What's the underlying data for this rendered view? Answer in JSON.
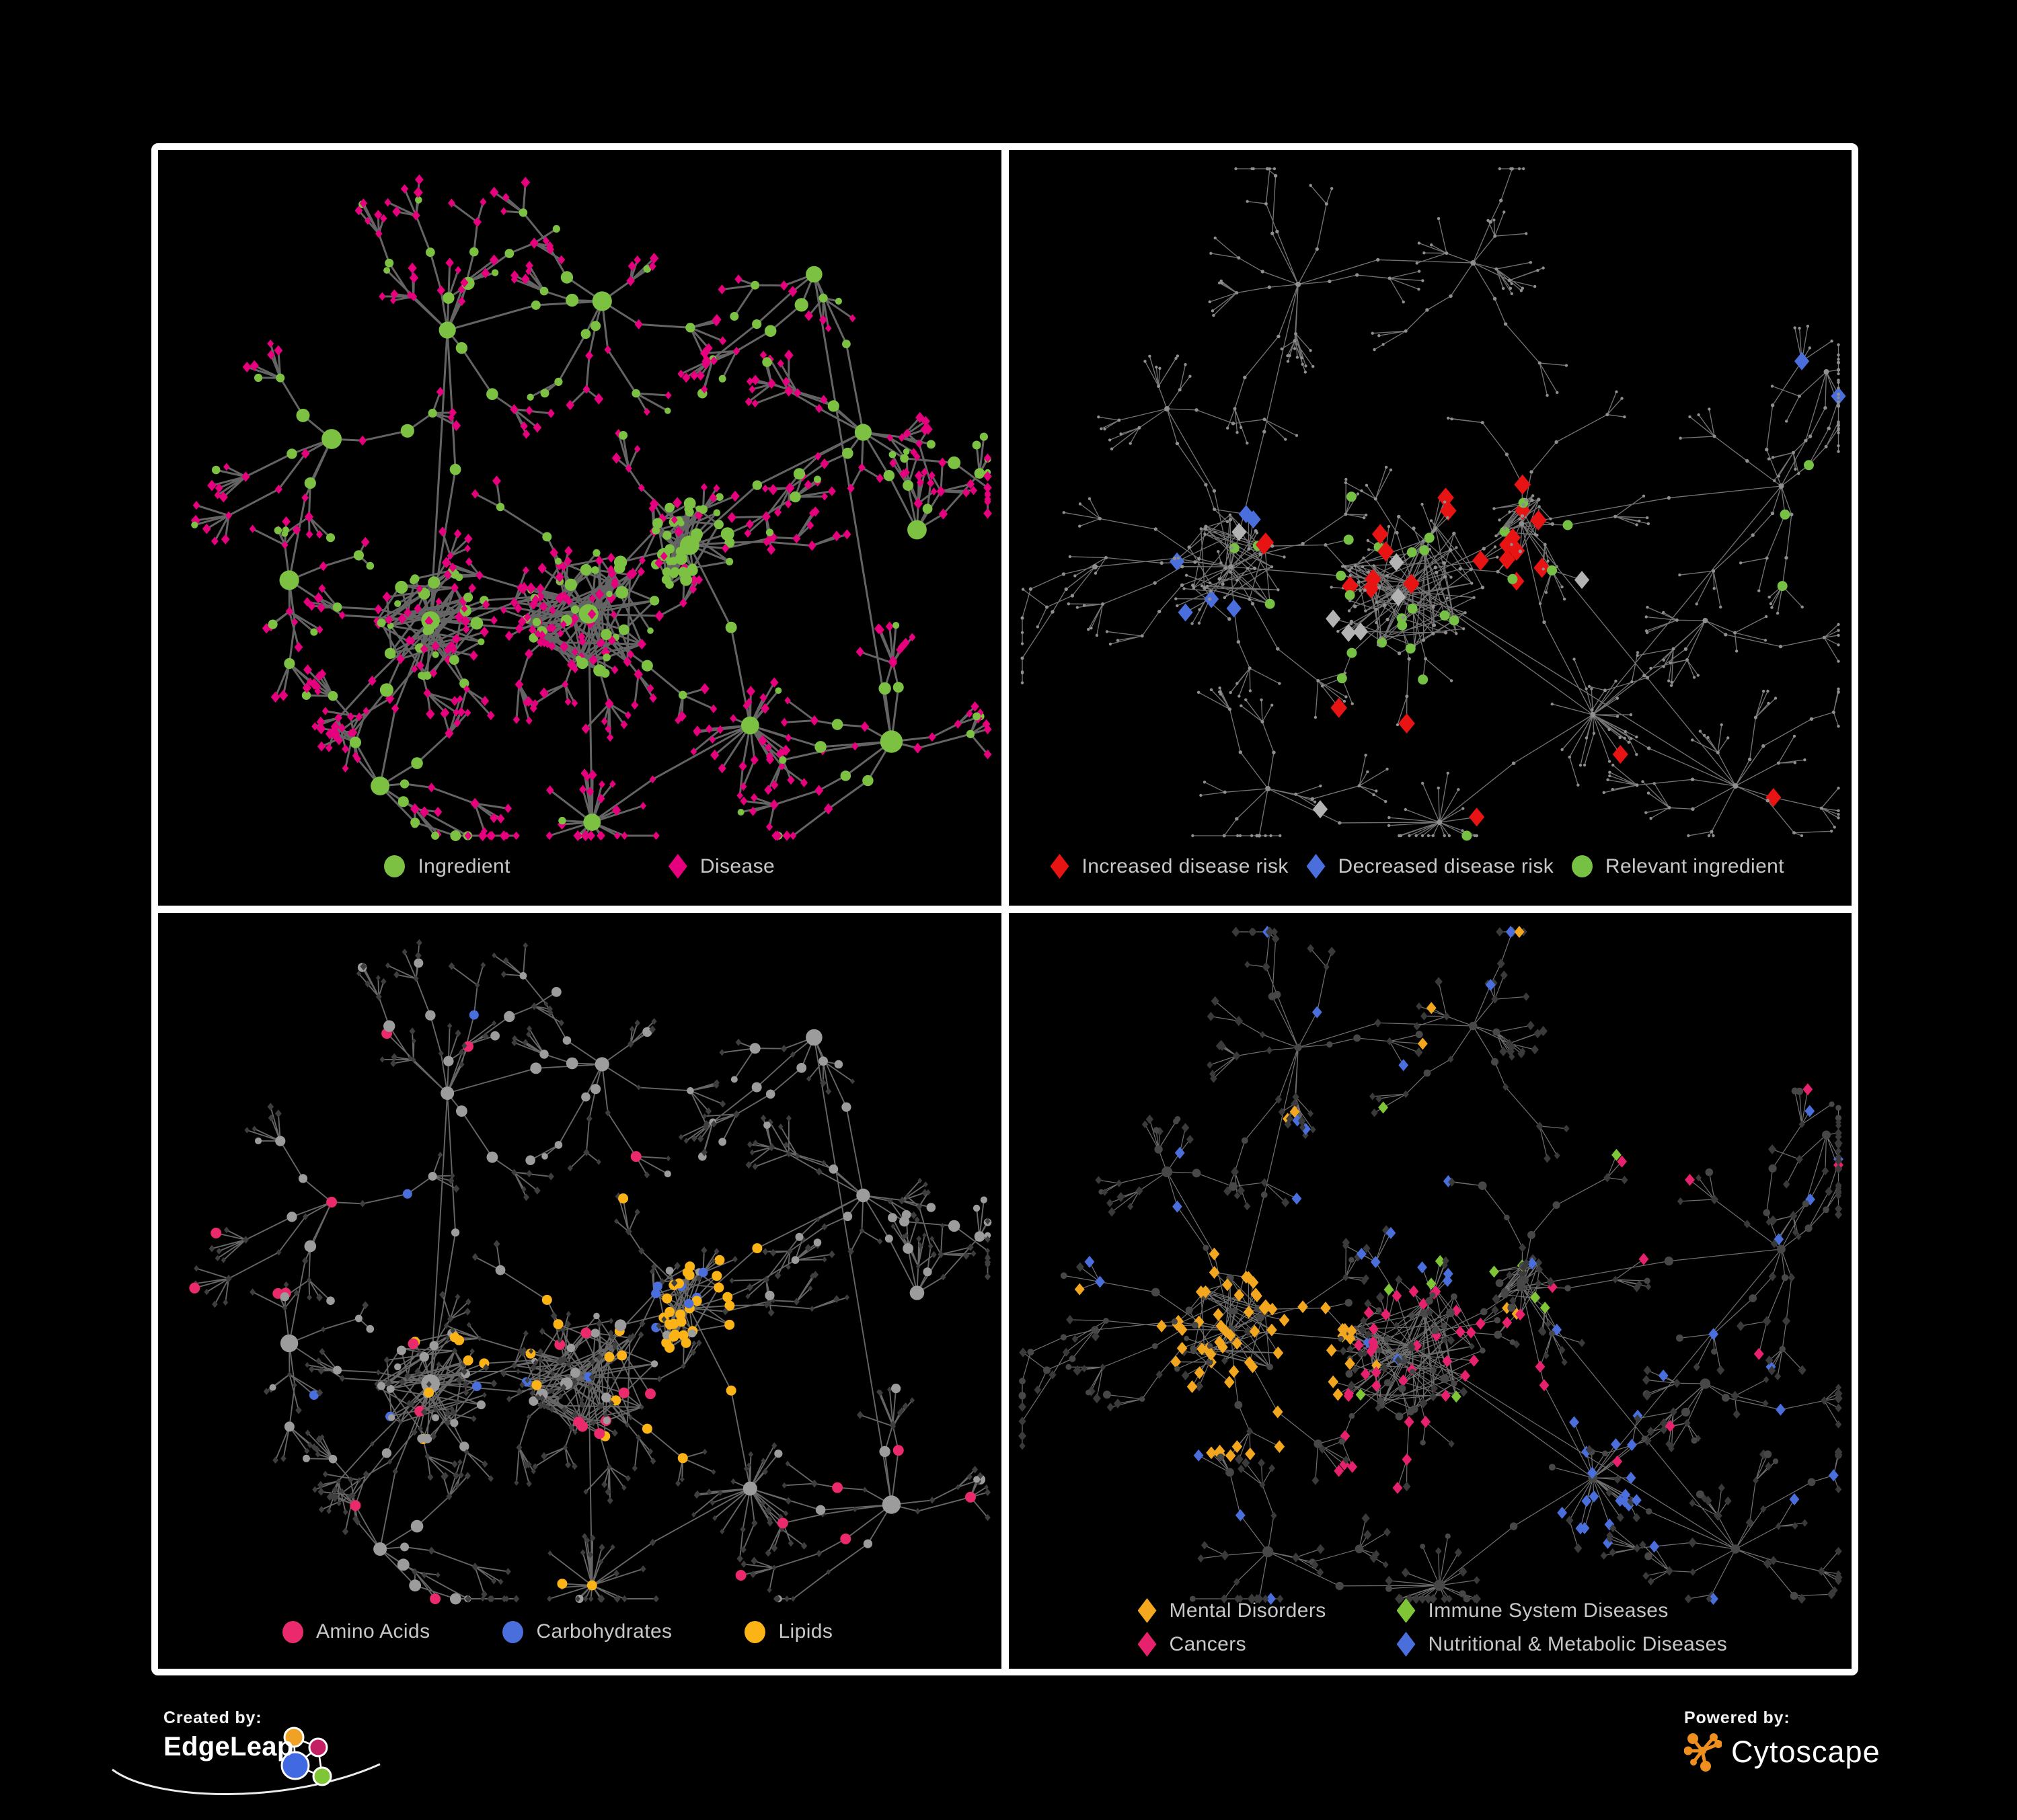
{
  "figure": {
    "background_color": "#000000",
    "panel_border_color": "#ffffff"
  },
  "branding": {
    "created_by_label": "Created by:",
    "created_by_name": "EdgeLeap",
    "powered_by_label": "Powered by:",
    "powered_by_name": "Cytoscape",
    "cytoscape_brand_color": "#ef8f1f",
    "edgeleap_logo_colors": [
      "#f0a224",
      "#c21f64",
      "#4169e1",
      "#7ec636"
    ]
  },
  "panels": [
    {
      "id": "ingredient-disease",
      "legend": [
        {
          "label": "Ingredient",
          "shape": "circle",
          "color": "#7cc142"
        },
        {
          "label": "Disease",
          "shape": "diamond",
          "color": "#e6007e"
        }
      ],
      "style": {
        "edge_color": "#6c6c6c",
        "node_circle_color": "#7cc142",
        "node_diamond_color": "#e6007e"
      }
    },
    {
      "id": "disease-risk",
      "legend": [
        {
          "label": "Increased disease risk",
          "shape": "diamond",
          "color": "#e81414"
        },
        {
          "label": "Decreased disease risk",
          "shape": "diamond",
          "color": "#4a6fdc"
        },
        {
          "label": "Relevant ingredient",
          "shape": "circle",
          "color": "#76c043"
        }
      ],
      "style": {
        "edge_color": "#8f8f8f",
        "node_default_color": "#8f8f8f",
        "neutral_diamond_color": "#b3b3b3"
      }
    },
    {
      "id": "macronutrients",
      "legend": [
        {
          "label": "Amino Acids",
          "shape": "circle",
          "color": "#ea2a6c"
        },
        {
          "label": "Carbohydrates",
          "shape": "circle",
          "color": "#4a6fdc"
        },
        {
          "label": "Lipids",
          "shape": "circle",
          "color": "#fbb316"
        }
      ],
      "style": {
        "edge_color": "#7f7f7f",
        "node_circle_color": "#9c9c9c",
        "node_diamond_color": "#3e3e3e"
      }
    },
    {
      "id": "disease-categories",
      "legend": [
        {
          "label": "Mental Disorders",
          "shape": "diamond",
          "color": "#f3a71f"
        },
        {
          "label": "Immune System Diseases",
          "shape": "diamond",
          "color": "#7ec636"
        },
        {
          "label": "Cancers",
          "shape": "diamond",
          "color": "#e8216e"
        },
        {
          "label": "Nutritional & Metabolic Diseases",
          "shape": "diamond",
          "color": "#4a6fdc"
        }
      ],
      "style": {
        "edge_color": "#8a8a8a",
        "node_circle_color": "#474747",
        "node_diamond_color": "#3a3a3a"
      }
    }
  ]
}
